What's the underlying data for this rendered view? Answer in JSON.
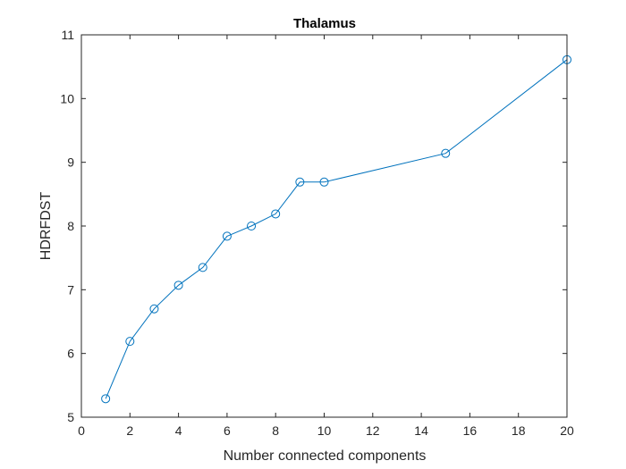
{
  "chart_data": {
    "type": "line",
    "title": "Thalamus",
    "xlabel": "Number connected components",
    "ylabel": "HDRFDST",
    "xlim": [
      0,
      20
    ],
    "ylim": [
      5,
      11
    ],
    "xticks": [
      0,
      2,
      4,
      6,
      8,
      10,
      12,
      14,
      16,
      18,
      20
    ],
    "yticks": [
      5,
      6,
      7,
      8,
      9,
      10,
      11
    ],
    "grid": false,
    "marker": "circle",
    "line_color": "#0072bd",
    "series": [
      {
        "x": [
          1,
          2,
          3,
          4,
          5,
          6,
          7,
          8,
          9,
          10,
          15,
          20
        ],
        "y": [
          5.29,
          6.19,
          6.7,
          7.07,
          7.35,
          7.84,
          8.0,
          8.19,
          8.69,
          8.69,
          9.14,
          10.61
        ]
      }
    ]
  }
}
